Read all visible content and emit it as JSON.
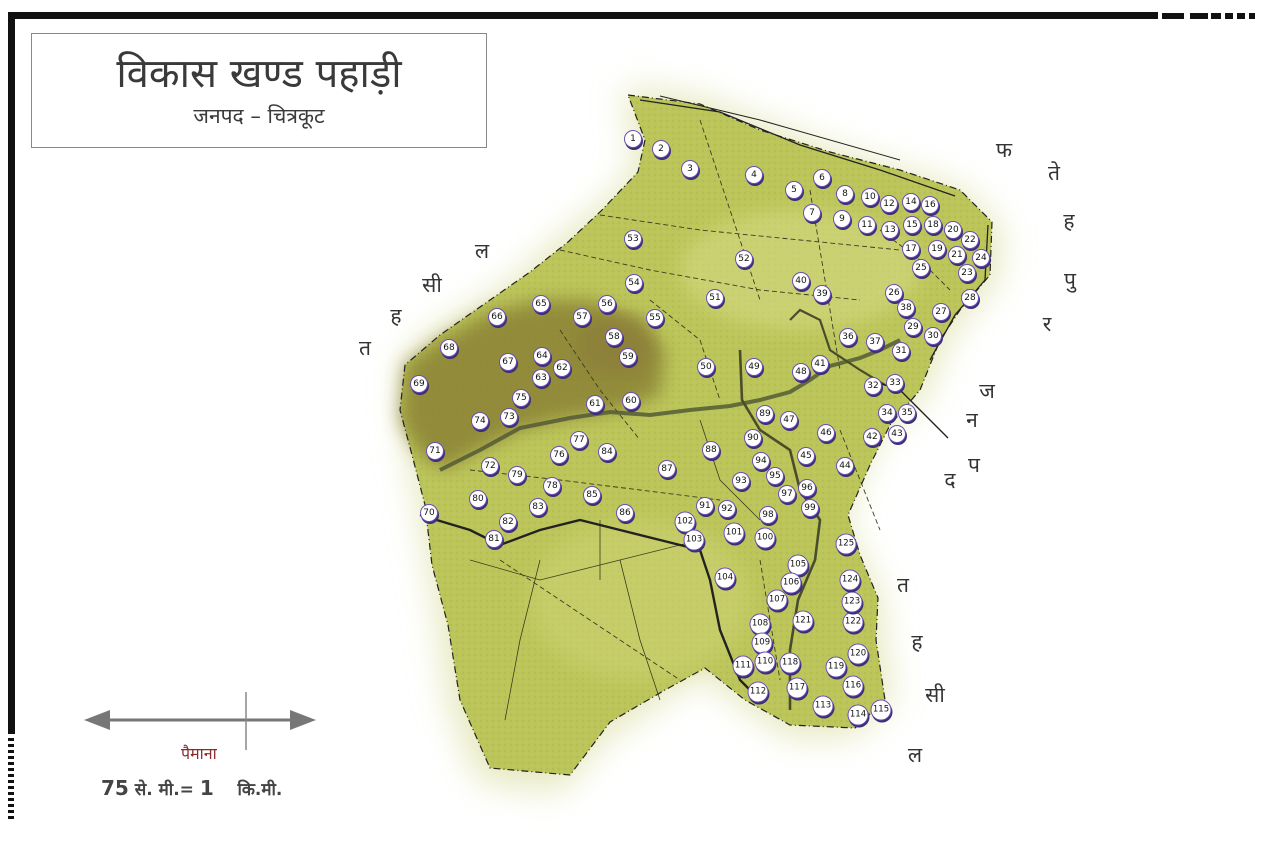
{
  "title": "विकास खण्ड पहाड़ी",
  "subtitle": "जनपद – चित्रकूट",
  "scale": {
    "label": "पैमाना",
    "left_value": "75",
    "left_unit": "से. मी.=",
    "right_value": "1",
    "right_unit": "कि.मी."
  },
  "colors": {
    "land": "#bcc55a",
    "land_dark": "#8a8236",
    "marker_border": "#6a4fb5",
    "river": "#555a36"
  },
  "side_labels": {
    "left_tehsil": [
      "त",
      "ह",
      "सी",
      "ल"
    ],
    "fatehpur": [
      "फ",
      "ते",
      "ह",
      "पु",
      "र"
    ],
    "janpad": [
      "ज",
      "न",
      "प",
      "द"
    ],
    "right_tehsil": [
      "त",
      "ह",
      "सी",
      "ल"
    ]
  },
  "villages": [
    "1",
    "2",
    "3",
    "4",
    "5",
    "6",
    "7",
    "8",
    "9",
    "10",
    "11",
    "12",
    "13",
    "14",
    "15",
    "16",
    "17",
    "18",
    "19",
    "20",
    "21",
    "22",
    "23",
    "24",
    "25",
    "26",
    "27",
    "28",
    "29",
    "30",
    "31",
    "32",
    "33",
    "34",
    "35",
    "36",
    "37",
    "38",
    "39",
    "40",
    "41",
    "42",
    "43",
    "44",
    "45",
    "46",
    "47",
    "48",
    "49",
    "50",
    "51",
    "52",
    "53",
    "54",
    "55",
    "56",
    "57",
    "58",
    "59",
    "60",
    "61",
    "62",
    "63",
    "64",
    "65",
    "66",
    "67",
    "68",
    "69",
    "70",
    "71",
    "72",
    "73",
    "74",
    "75",
    "76",
    "77",
    "78",
    "79",
    "80",
    "81",
    "82",
    "83",
    "84",
    "85",
    "86",
    "87",
    "88",
    "89",
    "90",
    "91",
    "92",
    "93",
    "94",
    "95",
    "96",
    "97",
    "98",
    "99",
    "100",
    "101",
    "102",
    "103",
    "104",
    "105",
    "106",
    "107",
    "108",
    "109",
    "110",
    "111",
    "112",
    "113",
    "114",
    "115",
    "116",
    "117",
    "118",
    "119",
    "120",
    "121",
    "122",
    "123",
    "124",
    "125"
  ]
}
